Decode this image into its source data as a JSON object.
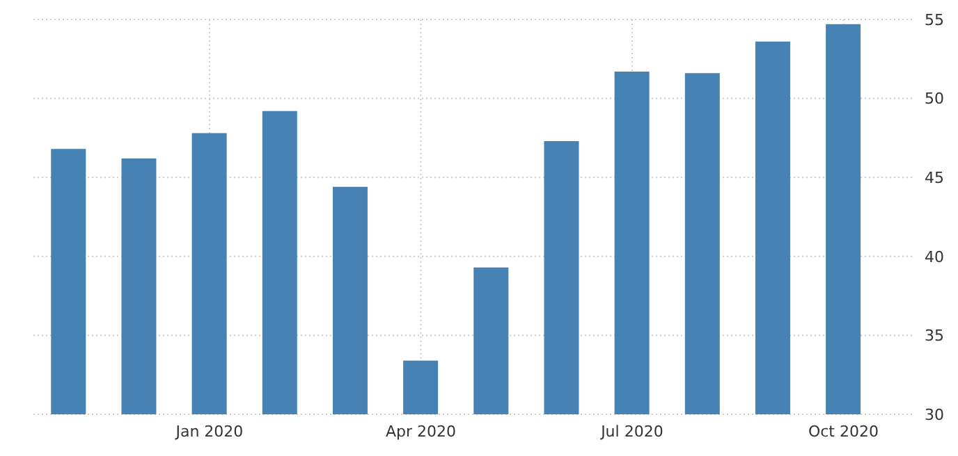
{
  "chart_data": {
    "type": "bar",
    "categories": [
      null,
      null,
      "Jan 2020",
      null,
      null,
      "Apr 2020",
      null,
      null,
      "Jul 2020",
      null,
      null,
      "Oct 2020"
    ],
    "values": [
      46.8,
      46.2,
      47.8,
      49.2,
      44.4,
      33.4,
      39.3,
      47.3,
      51.7,
      51.6,
      53.6,
      54.7
    ],
    "color": "#4682b4",
    "ylim": [
      30,
      55
    ],
    "yticks": [
      30,
      35,
      40,
      45,
      50,
      55
    ],
    "grid": true
  }
}
